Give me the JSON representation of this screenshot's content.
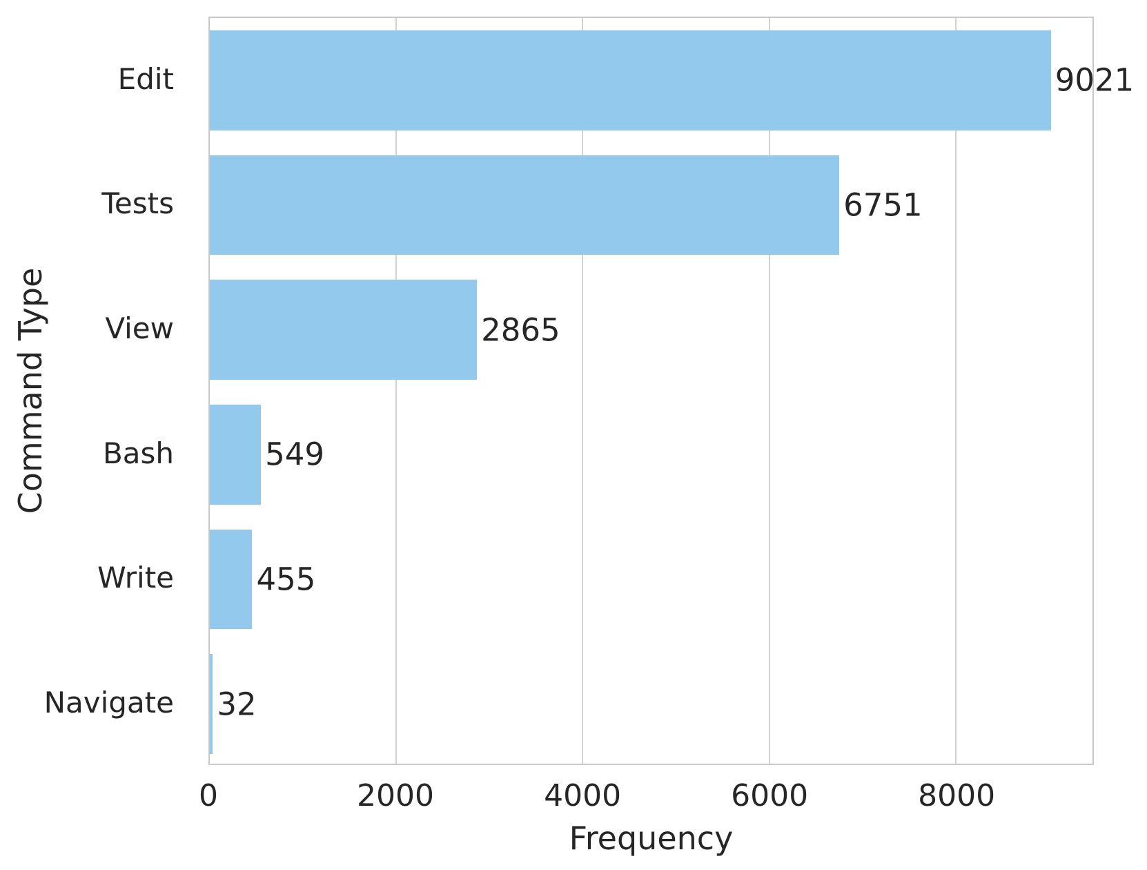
{
  "chart_data": {
    "type": "bar",
    "orientation": "horizontal",
    "title": "",
    "xlabel": "Frequency",
    "ylabel": "Command Type",
    "categories": [
      "Edit",
      "Tests",
      "View",
      "Bash",
      "Write",
      "Navigate"
    ],
    "values": [
      9021,
      6751,
      2865,
      549,
      455,
      32
    ],
    "value_labels": [
      "9021",
      "6751",
      "2865",
      "549",
      "455",
      "32"
    ],
    "xlim": [
      0,
      9467
    ],
    "xticks": [
      0,
      2000,
      4000,
      6000,
      8000
    ],
    "xtick_labels": [
      "0",
      "2000",
      "4000",
      "6000",
      "8000"
    ],
    "grid": "vertical",
    "legend": "none",
    "bar_color": "#92c9ec",
    "grid_color": "#d2d2d2",
    "spine_color": "#c9c9c9",
    "text_color": "#262626",
    "background_color": "#ffffff"
  }
}
